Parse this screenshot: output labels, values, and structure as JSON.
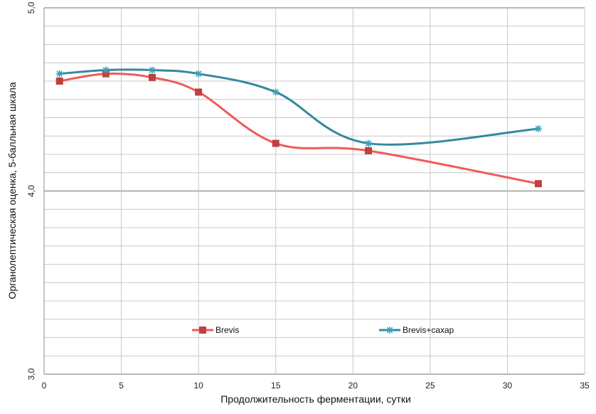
{
  "chart_data": {
    "type": "line",
    "title": "",
    "xlabel": "Продолжительность ферментации, сутки",
    "ylabel": "Органолептическая оценка, 5-балльная шкала",
    "xlim": [
      0,
      35
    ],
    "ylim": [
      3.0,
      5.0
    ],
    "x_ticks": [
      "0",
      "5",
      "10",
      "15",
      "20",
      "25",
      "30",
      "35"
    ],
    "y_tick_labels": [
      {
        "value": 3.0,
        "label": "3,0"
      },
      {
        "value": 4.0,
        "label": "4,0"
      },
      {
        "value": 5.0,
        "label": "5,0"
      }
    ],
    "grid": true,
    "smooth": true,
    "legend_position": "bottom",
    "series": [
      {
        "name": "Brevis",
        "color": "#f05a5a",
        "marker_color": "#c0403f",
        "marker": "square",
        "x": [
          1,
          4,
          7,
          10,
          15,
          21,
          32
        ],
        "y": [
          4.6,
          4.64,
          4.62,
          4.54,
          4.26,
          4.22,
          4.04
        ]
      },
      {
        "name": "Brevis+сахар",
        "color": "#34899e",
        "marker_color": "#3aa0bd",
        "marker": "star",
        "x": [
          1,
          4,
          7,
          10,
          15,
          21,
          32
        ],
        "y": [
          4.64,
          4.66,
          4.66,
          4.64,
          4.54,
          4.26,
          4.34
        ]
      }
    ]
  }
}
